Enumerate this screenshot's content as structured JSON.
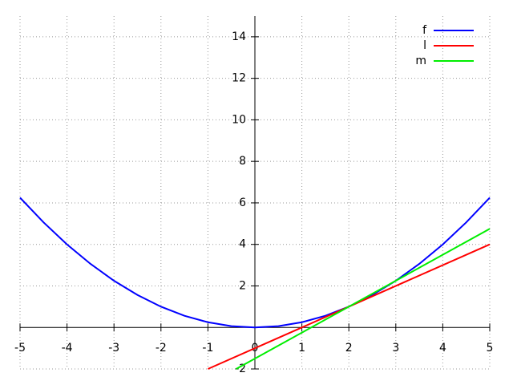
{
  "chart_data": {
    "type": "line",
    "xlim": [
      -5,
      5
    ],
    "ylim": [
      -2,
      15
    ],
    "xticks": [
      -5,
      -4,
      -3,
      -2,
      -1,
      0,
      1,
      2,
      3,
      4,
      5
    ],
    "yticks": [
      -2,
      2,
      4,
      6,
      8,
      10,
      12,
      14
    ],
    "grid": true,
    "legend": "top-right",
    "series": [
      {
        "name": "f",
        "color": "#0000ff",
        "x": [
          -5,
          -4.5,
          -4,
          -3.5,
          -3,
          -2.5,
          -2,
          -1.5,
          -1,
          -0.5,
          0,
          0.5,
          1,
          1.5,
          2,
          2.5,
          3,
          3.5,
          4,
          4.5,
          5
        ],
        "values": [
          6.25,
          5.0625,
          4,
          3.0625,
          2.25,
          1.5625,
          1,
          0.5625,
          0.25,
          0.0625,
          0,
          0.0625,
          0.25,
          0.5625,
          1,
          1.5625,
          2.25,
          3.0625,
          4,
          5.0625,
          6.25
        ]
      },
      {
        "name": "l",
        "color": "#ff0000",
        "x": [
          -1,
          5
        ],
        "values": [
          -2,
          4
        ]
      },
      {
        "name": "m",
        "color": "#00ee00",
        "x": [
          -0.4,
          5
        ],
        "values": [
          -2,
          4.75
        ]
      }
    ]
  }
}
